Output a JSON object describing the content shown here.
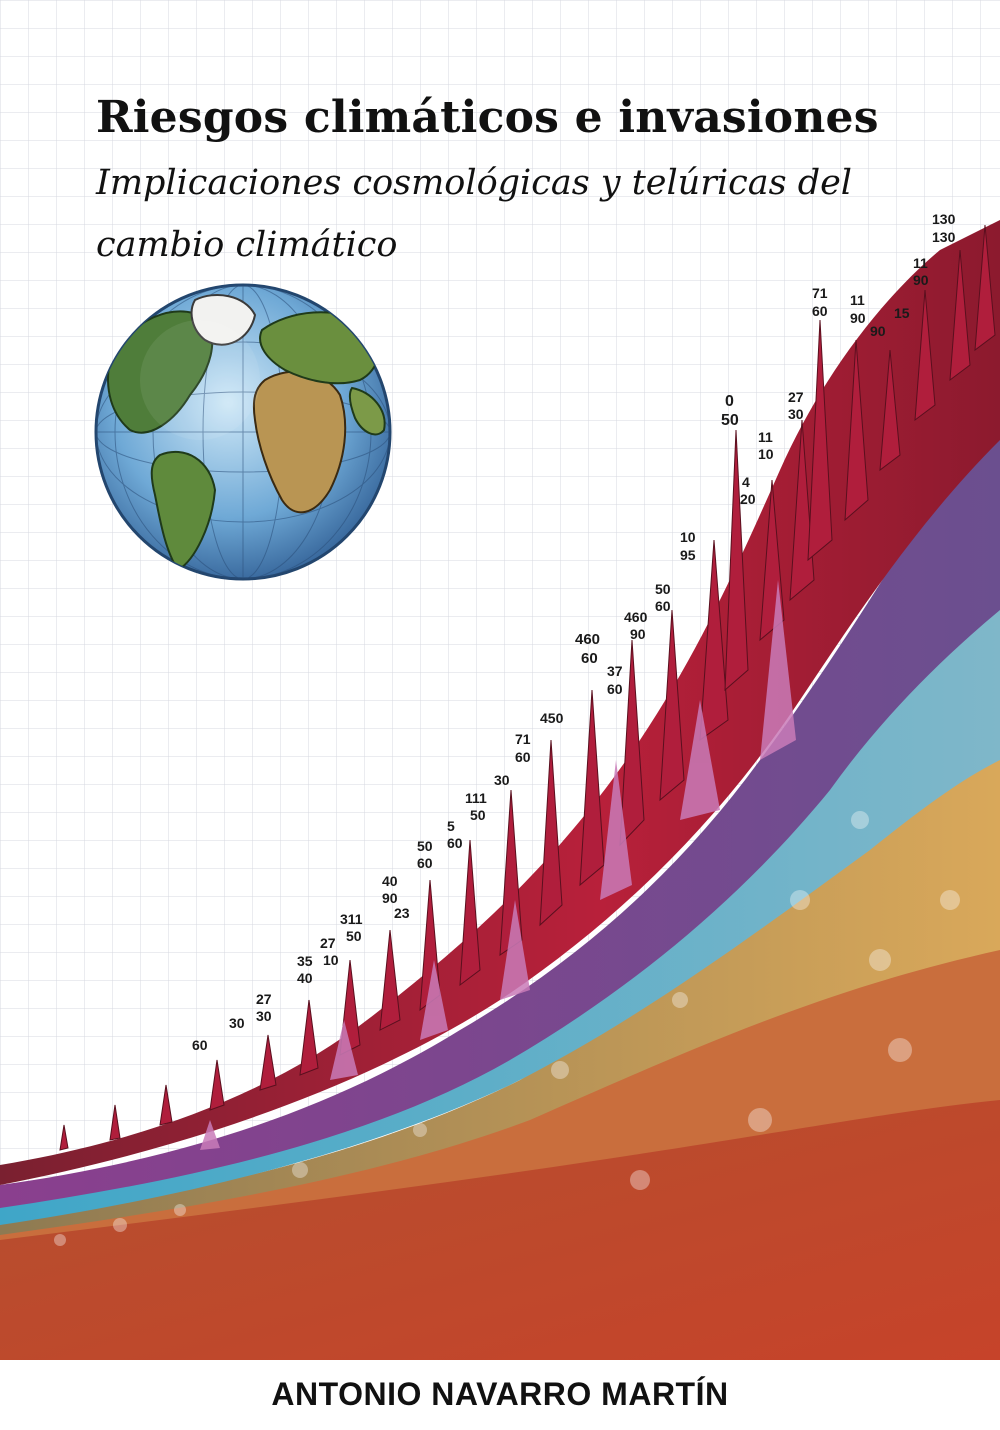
{
  "book": {
    "title": "Riesgos climáticos e invasiones",
    "subtitle": "Implicaciones cosmológicas y telúricas del cambio climático",
    "author": "ANTONIO NAVARRO MARTÍN"
  },
  "illustration": {
    "globe_icon": "earth-globe-icon",
    "peak_labels": [
      {
        "top": "",
        "bottom": "60"
      },
      {
        "top": "",
        "bottom": "30"
      },
      {
        "top": "27",
        "bottom": "30"
      },
      {
        "top": "35",
        "bottom": "40"
      },
      {
        "top": "27",
        "bottom": "10"
      },
      {
        "top": "311",
        "bottom": "50"
      },
      {
        "top": "40",
        "bottom": "90"
      },
      {
        "top": "",
        "bottom": "23"
      },
      {
        "top": "50",
        "bottom": "60"
      },
      {
        "top": "5",
        "bottom": "60"
      },
      {
        "top": "111",
        "bottom": "50"
      },
      {
        "top": "",
        "bottom": "30"
      },
      {
        "top": "71",
        "bottom": "60"
      },
      {
        "top": "",
        "bottom": "450"
      },
      {
        "top": "460",
        "bottom": "60"
      },
      {
        "top": "37",
        "bottom": "60"
      },
      {
        "top": "460",
        "bottom": "90"
      },
      {
        "top": "50",
        "bottom": "60"
      },
      {
        "top": "10",
        "bottom": "95"
      },
      {
        "top": "4",
        "bottom": "20"
      },
      {
        "top": "11",
        "bottom": "10"
      },
      {
        "top": "0",
        "bottom": "50"
      },
      {
        "top": "27",
        "bottom": "30"
      },
      {
        "top": "71",
        "bottom": "60"
      },
      {
        "top": "11",
        "bottom": "90"
      },
      {
        "top": "",
        "bottom": "90"
      },
      {
        "top": "",
        "bottom": "15"
      },
      {
        "top": "11",
        "bottom": "90"
      },
      {
        "top": "130",
        "bottom": "130"
      }
    ]
  }
}
